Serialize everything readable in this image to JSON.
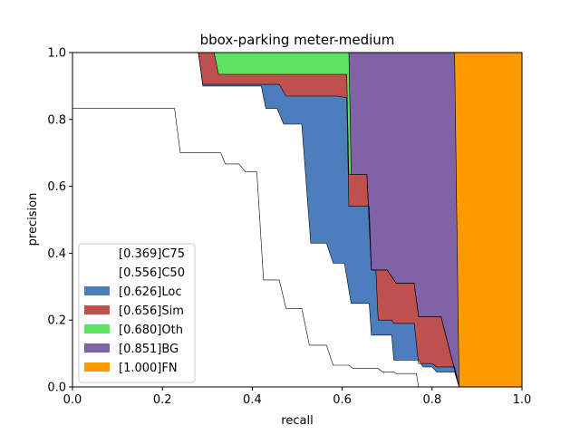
{
  "chart_data": {
    "type": "area",
    "title": "bbox-parking meter-medium",
    "xlabel": "recall",
    "ylabel": "precision",
    "xlim": [
      0,
      1
    ],
    "ylim": [
      0,
      1
    ],
    "xticks": [
      "0.0",
      "0.2",
      "0.4",
      "0.6",
      "0.8",
      "1.0"
    ],
    "yticks": [
      "0.0",
      "0.2",
      "0.4",
      "0.6",
      "0.8",
      "1.0"
    ],
    "legend_position": "lower-left",
    "series": [
      {
        "name": "[0.369]C75",
        "color": "#ffffff",
        "points": [
          [
            0,
            0.833
          ],
          [
            0.227,
            0.833
          ],
          [
            0.24,
            0.7
          ],
          [
            0.33,
            0.7
          ],
          [
            0.34,
            0.667
          ],
          [
            0.37,
            0.667
          ],
          [
            0.385,
            0.643
          ],
          [
            0.41,
            0.643
          ],
          [
            0.425,
            0.32
          ],
          [
            0.46,
            0.32
          ],
          [
            0.475,
            0.235
          ],
          [
            0.51,
            0.235
          ],
          [
            0.527,
            0.125
          ],
          [
            0.565,
            0.125
          ],
          [
            0.58,
            0.065
          ],
          [
            0.615,
            0.065
          ],
          [
            0.625,
            0.055
          ],
          [
            0.68,
            0.055
          ],
          [
            0.69,
            0.045
          ],
          [
            0.715,
            0.045
          ],
          [
            0.72,
            0.04
          ],
          [
            0.765,
            0.04
          ],
          [
            0.77,
            0.0
          ]
        ]
      },
      {
        "name": "[0.556]C50",
        "color": "#ffffff",
        "points": [
          [
            0,
            1.0
          ],
          [
            0.28,
            1.0
          ],
          [
            0.29,
            0.9
          ],
          [
            0.42,
            0.9
          ],
          [
            0.43,
            0.833
          ],
          [
            0.455,
            0.833
          ],
          [
            0.47,
            0.786
          ],
          [
            0.51,
            0.786
          ],
          [
            0.53,
            0.43
          ],
          [
            0.565,
            0.43
          ],
          [
            0.58,
            0.37
          ],
          [
            0.605,
            0.37
          ],
          [
            0.62,
            0.25
          ],
          [
            0.625,
            0.25
          ],
          [
            0.66,
            0.25
          ],
          [
            0.665,
            0.155
          ],
          [
            0.71,
            0.155
          ],
          [
            0.715,
            0.08
          ],
          [
            0.77,
            0.08
          ],
          [
            0.78,
            0.06
          ],
          [
            0.8,
            0.06
          ],
          [
            0.81,
            0.045
          ],
          [
            0.85,
            0.045
          ],
          [
            0.86,
            0.0
          ]
        ]
      },
      {
        "name": "[0.626]Loc",
        "color": "#4c7ebd",
        "points": [
          [
            0,
            1.0
          ],
          [
            0.28,
            1.0
          ],
          [
            0.29,
            0.905
          ],
          [
            0.42,
            0.905
          ],
          [
            0.43,
            0.905
          ],
          [
            0.46,
            0.905
          ],
          [
            0.475,
            0.87
          ],
          [
            0.59,
            0.87
          ],
          [
            0.61,
            0.865
          ],
          [
            0.615,
            0.54
          ],
          [
            0.66,
            0.54
          ],
          [
            0.665,
            0.35
          ],
          [
            0.675,
            0.35
          ],
          [
            0.68,
            0.2
          ],
          [
            0.71,
            0.2
          ],
          [
            0.715,
            0.19
          ],
          [
            0.76,
            0.19
          ],
          [
            0.77,
            0.07
          ],
          [
            0.8,
            0.07
          ],
          [
            0.81,
            0.06
          ],
          [
            0.85,
            0.06
          ],
          [
            0.86,
            0.0
          ]
        ]
      },
      {
        "name": "[0.656]Sim",
        "color": "#c0504d",
        "points": [
          [
            0,
            1.0
          ],
          [
            0.28,
            1.0
          ],
          [
            0.315,
            1.0
          ],
          [
            0.325,
            0.935
          ],
          [
            0.61,
            0.935
          ],
          [
            0.615,
            0.635
          ],
          [
            0.655,
            0.635
          ],
          [
            0.665,
            0.35
          ],
          [
            0.7,
            0.35
          ],
          [
            0.72,
            0.31
          ],
          [
            0.76,
            0.31
          ],
          [
            0.77,
            0.21
          ],
          [
            0.82,
            0.21
          ],
          [
            0.835,
            0.13
          ],
          [
            0.86,
            0.0
          ]
        ]
      },
      {
        "name": "[0.680]Oth",
        "color": "#5ee360",
        "points": [
          [
            0,
            1.0
          ],
          [
            0.615,
            1.0
          ],
          [
            0.62,
            0.635
          ],
          [
            0.655,
            0.635
          ],
          [
            0.665,
            0.35
          ],
          [
            0.7,
            0.35
          ],
          [
            0.72,
            0.31
          ],
          [
            0.76,
            0.31
          ],
          [
            0.77,
            0.21
          ],
          [
            0.82,
            0.21
          ],
          [
            0.835,
            0.13
          ],
          [
            0.86,
            0.0
          ]
        ]
      },
      {
        "name": "[0.851]BG",
        "color": "#8062a6",
        "points": [
          [
            0,
            1.0
          ],
          [
            0.85,
            1.0
          ],
          [
            0.86,
            0.0
          ]
        ]
      },
      {
        "name": "[1.000]FN",
        "color": "#ff9900",
        "points": [
          [
            0,
            1.0
          ],
          [
            1.0,
            1.0
          ],
          [
            1.0,
            0.0
          ]
        ]
      }
    ]
  }
}
